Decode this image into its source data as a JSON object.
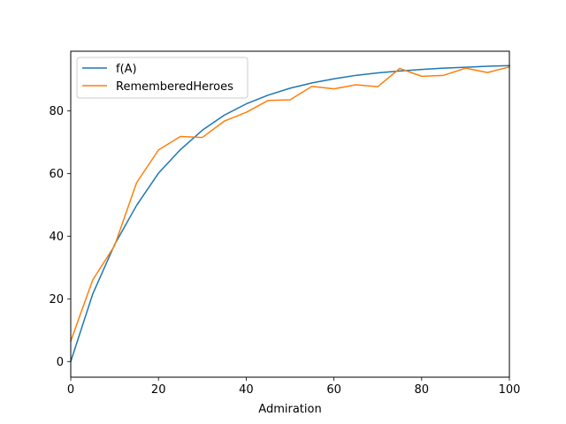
{
  "chart_data": {
    "type": "line",
    "title": "",
    "xlabel": "Admiration",
    "ylabel": "",
    "xlim": [
      0,
      100
    ],
    "ylim": [
      -5,
      99
    ],
    "xticks": [
      0,
      20,
      40,
      60,
      80,
      100
    ],
    "yticks": [
      0,
      20,
      40,
      60,
      80
    ],
    "grid": false,
    "legend_position": "top-left",
    "series": [
      {
        "name": "f(A)",
        "color": "#1f77b4",
        "x": [
          0,
          5,
          10,
          15,
          20,
          25,
          30,
          35,
          40,
          45,
          50,
          55,
          60,
          65,
          70,
          75,
          80,
          85,
          90,
          95,
          100
        ],
        "y": [
          0,
          21.5,
          37.3,
          49.8,
          60.1,
          67.6,
          73.8,
          78.6,
          82.2,
          85.0,
          87.2,
          88.9,
          90.2,
          91.3,
          92.1,
          92.7,
          93.2,
          93.6,
          93.9,
          94.2,
          94.4
        ]
      },
      {
        "name": "RememberedHeroes",
        "color": "#ff7f0e",
        "x": [
          0,
          5,
          10,
          15,
          20,
          25,
          30,
          35,
          40,
          45,
          50,
          55,
          60,
          65,
          70,
          75,
          80,
          85,
          90,
          95,
          100
        ],
        "y": [
          6.5,
          26.0,
          37.0,
          57.0,
          67.5,
          71.8,
          71.5,
          76.7,
          79.5,
          83.3,
          83.5,
          87.8,
          87.0,
          88.3,
          87.7,
          93.5,
          91.0,
          91.3,
          93.6,
          92.2,
          94.0
        ]
      }
    ]
  }
}
